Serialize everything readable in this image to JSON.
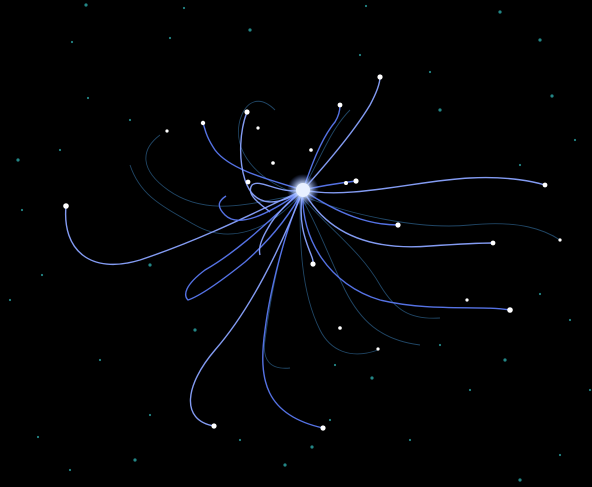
{
  "scene": {
    "background": "#000000",
    "tendril_color_bright": "#8aa3ff",
    "tendril_color_mid": "#5a78f0",
    "tendril_color_faint": "#3a7fb8",
    "node_color": "#ffffff",
    "core_color": "#cfe0ff",
    "star_color": "#2fb3b3"
  }
}
